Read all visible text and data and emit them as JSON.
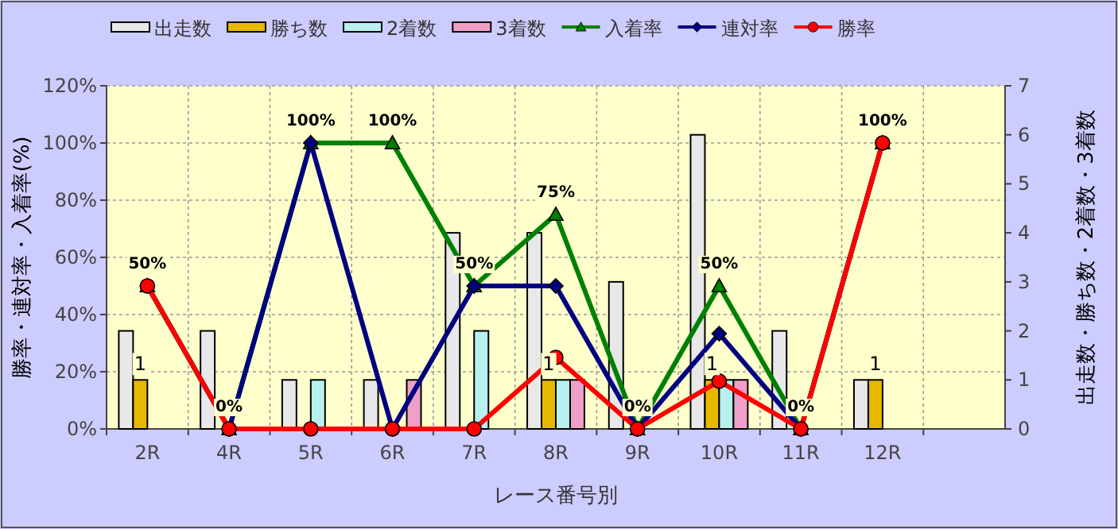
{
  "chart_data": {
    "type": "bar",
    "xlabel": "レース番号別",
    "ylabel": "勝率・連対率・入着率(%)",
    "y2label": "出走数・勝ち数・2着数・3着数",
    "categories": [
      "2R",
      "4R",
      "5R",
      "6R",
      "7R",
      "8R",
      "9R",
      "10R",
      "11R",
      "12R",
      null
    ],
    "series": [
      {
        "name": "出走数",
        "axis": "y2",
        "color": "#e8e8e8",
        "values": [
          2,
          2,
          1,
          1,
          4,
          4,
          3,
          6,
          2,
          1,
          null
        ]
      },
      {
        "name": "勝ち数",
        "axis": "y2",
        "color": "#e6b800",
        "values": [
          1,
          0,
          0,
          0,
          0,
          1,
          0,
          1,
          0,
          1,
          null
        ],
        "value_labels": [
          "1",
          null,
          null,
          null,
          null,
          "1",
          null,
          "1",
          null,
          "1",
          null
        ]
      },
      {
        "name": "2着数",
        "axis": "y2",
        "color": "#b8f0f0",
        "values": [
          0,
          0,
          1,
          0,
          2,
          1,
          0,
          1,
          0,
          0,
          null
        ]
      },
      {
        "name": "3着数",
        "axis": "y2",
        "color": "#f0a0c8",
        "values": [
          0,
          0,
          0,
          1,
          0,
          1,
          0,
          1,
          0,
          0,
          null
        ]
      },
      {
        "name": "入着率",
        "type": "line",
        "color": "#008000",
        "marker": "triangle",
        "values": [
          50,
          0,
          100,
          100,
          50,
          75,
          0,
          50,
          0,
          100,
          null
        ],
        "value_labels": [
          "50%",
          "0%",
          "100%",
          "100%",
          "50%",
          "75%",
          "0%",
          "50%",
          "0%",
          "100%",
          null
        ]
      },
      {
        "name": "連対率",
        "type": "line",
        "color": "#000080",
        "marker": "diamond",
        "values": [
          50,
          0,
          100,
          0,
          50,
          50,
          0,
          33.3,
          0,
          100,
          null
        ]
      },
      {
        "name": "勝率",
        "type": "line",
        "color": "#ff0000",
        "marker": "circle",
        "values": [
          50,
          0,
          0,
          0,
          0,
          25,
          0,
          16.7,
          0,
          100,
          null
        ]
      }
    ],
    "ylim": [
      0,
      120
    ],
    "yticks": [
      {
        "value": 0,
        "label": "0%"
      },
      {
        "value": 20,
        "label": "20%"
      },
      {
        "value": 40,
        "label": "40%"
      },
      {
        "value": 60,
        "label": "60%"
      },
      {
        "value": 80,
        "label": "80%"
      },
      {
        "value": 100,
        "label": "100%"
      },
      {
        "value": 120,
        "label": "120%"
      }
    ],
    "y2lim": [
      0,
      7
    ],
    "y2ticks": [
      0,
      1,
      2,
      3,
      4,
      5,
      6,
      7
    ],
    "grid": true,
    "legend": "top",
    "line_style": "solid"
  }
}
